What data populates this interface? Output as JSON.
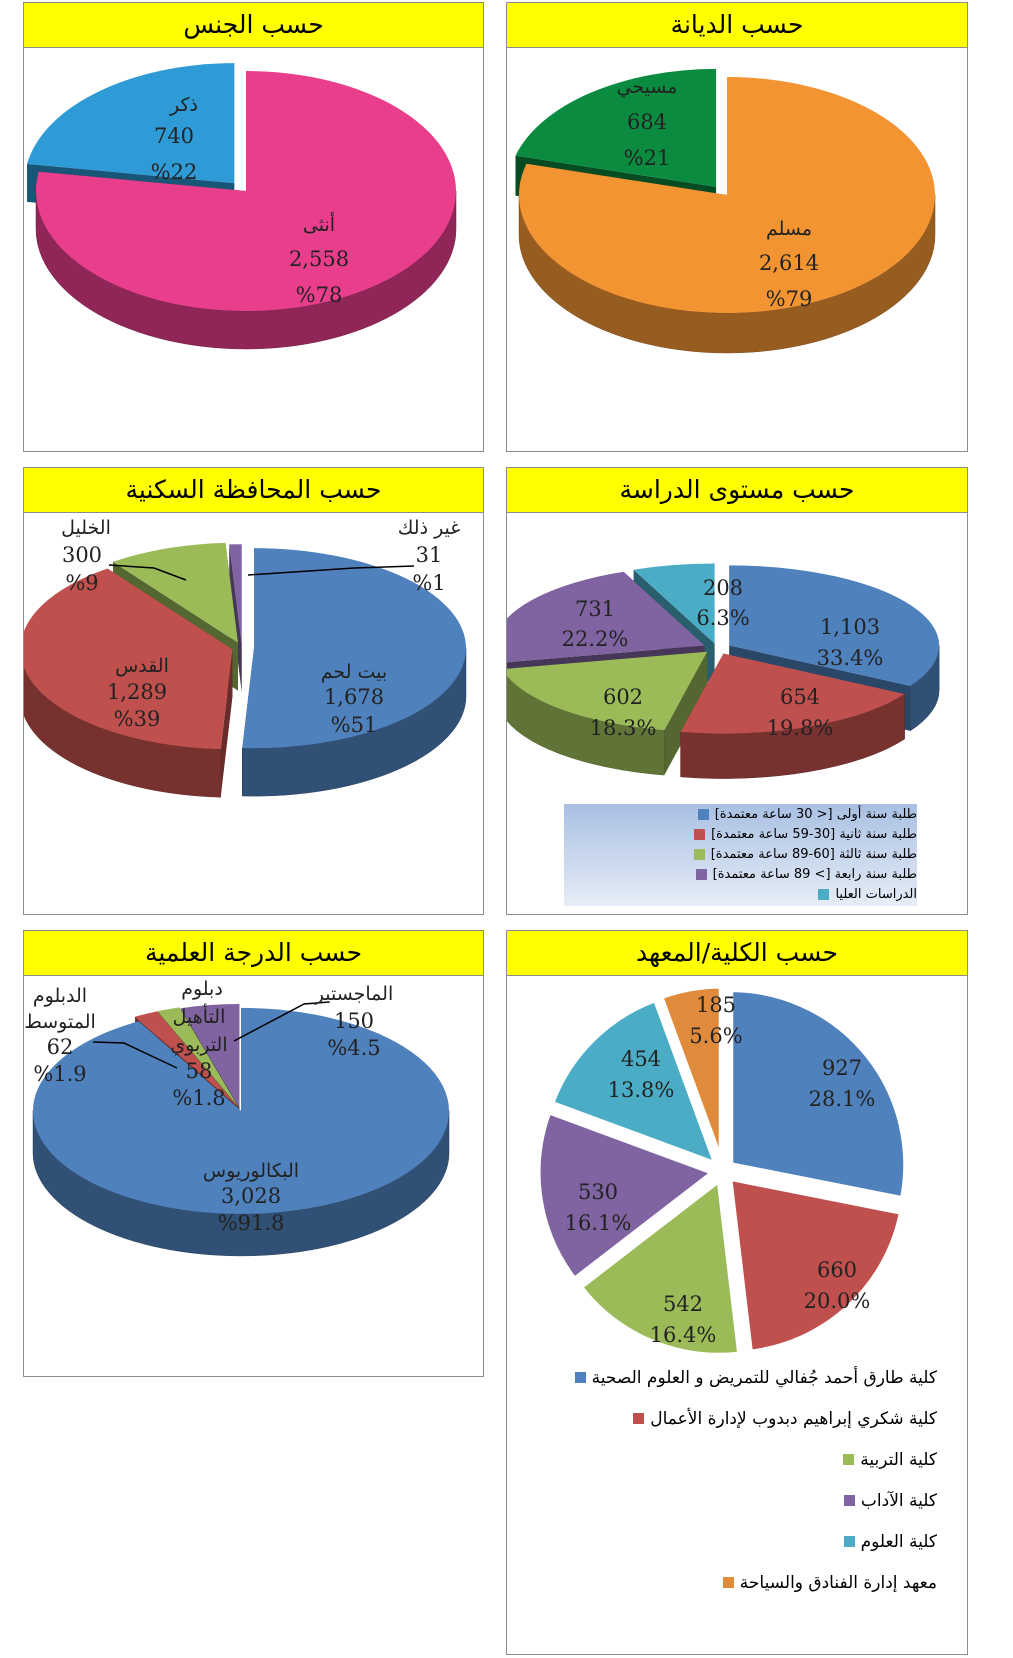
{
  "charts": {
    "gender": {
      "title": "حسب الجنس",
      "chart_data": {
        "type": "pie",
        "slices": [
          {
            "label": "أنثى",
            "value": 2558,
            "pct": "%78",
            "color": "#e83e8c"
          },
          {
            "label": "ذكر",
            "value": 740,
            "pct": "%22",
            "color": "#2e9ad6"
          }
        ]
      },
      "display": {
        "female_value": "2,558",
        "male_value": "740"
      }
    },
    "religion": {
      "title": "حسب الديانة",
      "chart_data": {
        "type": "pie",
        "slices": [
          {
            "label": "مسلم",
            "value": 2614,
            "pct": "%79",
            "color": "#f39433"
          },
          {
            "label": "مسيحي",
            "value": 684,
            "pct": "%21",
            "color": "#0a8b40"
          }
        ]
      },
      "display": {
        "muslim_value": "2,614",
        "christian_value": "684"
      }
    },
    "governorate": {
      "title": "حسب المحافظة السكنية",
      "chart_data": {
        "type": "pie",
        "slices": [
          {
            "label": "بيت لحم",
            "value": 1678,
            "pct": "%51",
            "color": "#4f81bd"
          },
          {
            "label": "القدس",
            "value": 1289,
            "pct": "%39",
            "color": "#c0504d"
          },
          {
            "label": "الخليل",
            "value": 300,
            "pct": "%9",
            "color": "#9bbb59"
          },
          {
            "label": "غير ذلك",
            "value": 31,
            "pct": "%1",
            "color": "#8064a2"
          }
        ]
      },
      "display": {
        "bethlehem_value": "1,678",
        "jerusalem_value": "1,289"
      }
    },
    "level": {
      "title": "حسب مستوى الدراسة",
      "chart_data": {
        "type": "pie",
        "slices": [
          {
            "label": "طلبة سنة أولى [< 30 ساعة معتمدة]",
            "value": 1103,
            "pct": "33.4%",
            "color": "#4f81bd"
          },
          {
            "label": "طلبة سنة ثانية [30-59 ساعة معتمدة]",
            "value": 654,
            "pct": "19.8%",
            "color": "#c0504d"
          },
          {
            "label": "طلبة سنة ثالثة [60-89 ساعة معتمدة]",
            "value": 602,
            "pct": "18.3%",
            "color": "#9bbb59"
          },
          {
            "label": "طلبة سنة رابعة [> 89 ساعة معتمدة]",
            "value": 731,
            "pct": "22.2%",
            "color": "#8064a2"
          },
          {
            "label": "الدراسات العليا",
            "value": 208,
            "pct": "6.3%",
            "color": "#4bacc6"
          }
        ]
      },
      "display": {
        "first_value": "1,103"
      }
    },
    "degree": {
      "title": "حسب الدرجة العلمية",
      "chart_data": {
        "type": "pie",
        "slices": [
          {
            "label": "البكالوريوس",
            "value": 3028,
            "pct": "%91.8",
            "color": "#4f81bd"
          },
          {
            "label_line1": "الدبلوم",
            "label_line2": "المتوسط",
            "value": 62,
            "pct": "%1.9",
            "color": "#c0504d"
          },
          {
            "label_line1": "دبلوم",
            "label_line2": "التأهيل",
            "label_line3": "التربوي",
            "value": 58,
            "pct": "%1.8",
            "color": "#9bbb59"
          },
          {
            "label": "الماجستير",
            "value": 150,
            "pct": "%4.5",
            "color": "#8064a2"
          }
        ]
      },
      "display": {
        "bachelor_value": "3,028"
      }
    },
    "college": {
      "title": "حسب الكلية/المعهد",
      "chart_data": {
        "type": "pie",
        "slices": [
          {
            "label": "كلية طارق أحمد جُفالي للتمريض و العلوم الصحية",
            "value": 927,
            "pct": "28.1%",
            "color": "#4f81bd"
          },
          {
            "label": "كلية شكري إبراهيم دبدوب لإدارة الأعمال",
            "value": 660,
            "pct": "20.0%",
            "color": "#c0504d"
          },
          {
            "label": "كلية التربية",
            "value": 542,
            "pct": "16.4%",
            "color": "#9bbb59"
          },
          {
            "label": "كلية الآداب",
            "value": 530,
            "pct": "16.1%",
            "color": "#8064a2"
          },
          {
            "label": "كلية العلوم",
            "value": 454,
            "pct": "13.8%",
            "color": "#4bacc6"
          },
          {
            "label": "معهد إدارة الفنادق والسياحة",
            "value": 185,
            "pct": "5.6%",
            "color": "#e08b3b"
          }
        ]
      }
    }
  }
}
